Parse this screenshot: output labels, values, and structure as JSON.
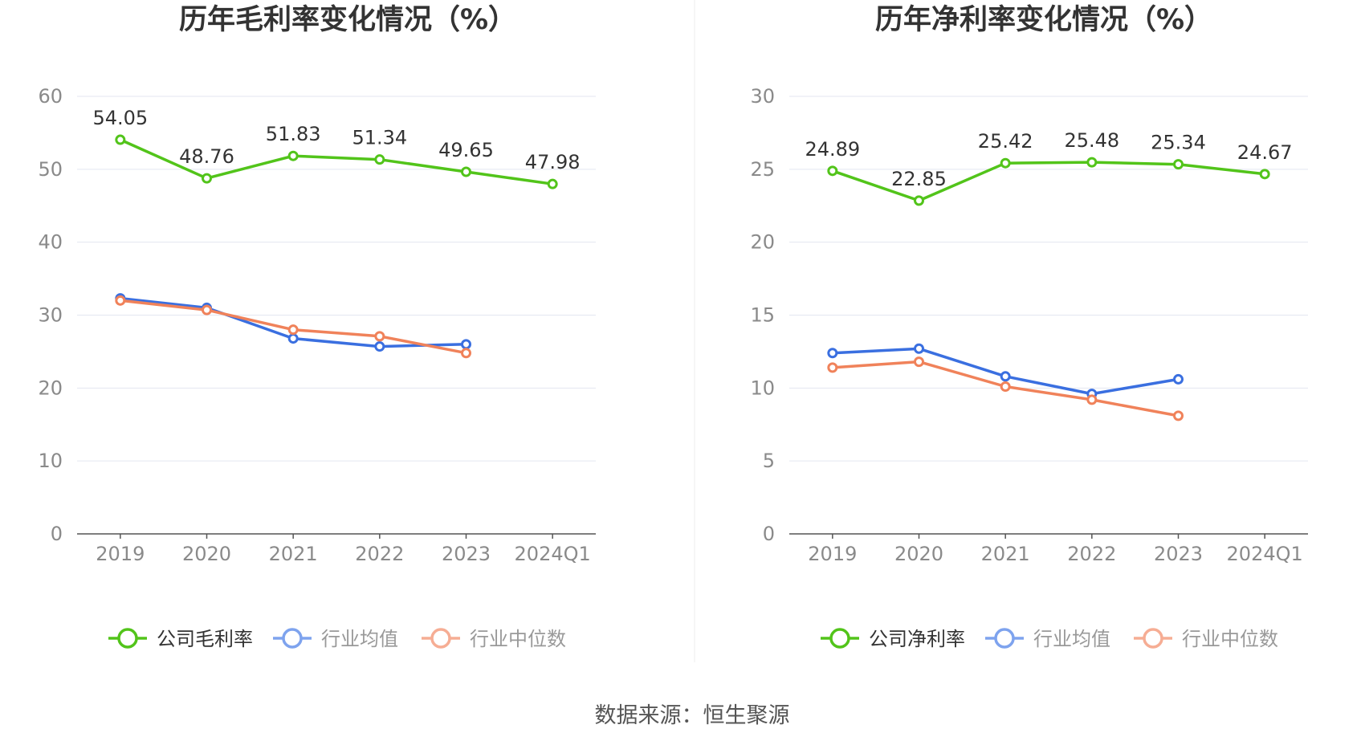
{
  "footer": {
    "source": "数据来源：恒生聚源"
  },
  "legend_colors": {
    "company": "#52c41a",
    "avg": "#3a6fe0",
    "median": "#f0825a"
  },
  "chart_data": [
    {
      "type": "line",
      "title": "历年毛利率变化情况（%）",
      "categories": [
        "2019",
        "2020",
        "2021",
        "2022",
        "2023",
        "2024Q1"
      ],
      "ylim": [
        0,
        60
      ],
      "yticks": [
        "0",
        "10",
        "20",
        "30",
        "40",
        "50",
        "60"
      ],
      "grid": true,
      "legend_position": "bottom",
      "series": [
        {
          "name": "公司毛利率",
          "values": [
            54.05,
            48.76,
            51.83,
            51.34,
            49.65,
            47.98
          ],
          "labels": [
            "54.05",
            "48.76",
            "51.83",
            "51.34",
            "49.65",
            "47.98"
          ]
        },
        {
          "name": "行业均值",
          "values": [
            32.3,
            31.0,
            26.8,
            25.7,
            26.0,
            null
          ]
        },
        {
          "name": "行业中位数",
          "values": [
            32.0,
            30.7,
            28.0,
            27.1,
            24.8,
            null
          ]
        }
      ]
    },
    {
      "type": "line",
      "title": "历年净利率变化情况（%）",
      "categories": [
        "2019",
        "2020",
        "2021",
        "2022",
        "2023",
        "2024Q1"
      ],
      "ylim": [
        0,
        30
      ],
      "yticks": [
        "0",
        "5",
        "10",
        "15",
        "20",
        "25",
        "30"
      ],
      "grid": true,
      "legend_position": "bottom",
      "series": [
        {
          "name": "公司净利率",
          "values": [
            24.89,
            22.85,
            25.42,
            25.48,
            25.34,
            24.67
          ],
          "labels": [
            "24.89",
            "22.85",
            "25.42",
            "25.48",
            "25.34",
            "24.67"
          ]
        },
        {
          "name": "行业均值",
          "values": [
            12.4,
            12.7,
            10.8,
            9.6,
            10.6,
            null
          ]
        },
        {
          "name": "行业中位数",
          "values": [
            11.4,
            11.8,
            10.1,
            9.2,
            8.1,
            null
          ]
        }
      ]
    }
  ]
}
